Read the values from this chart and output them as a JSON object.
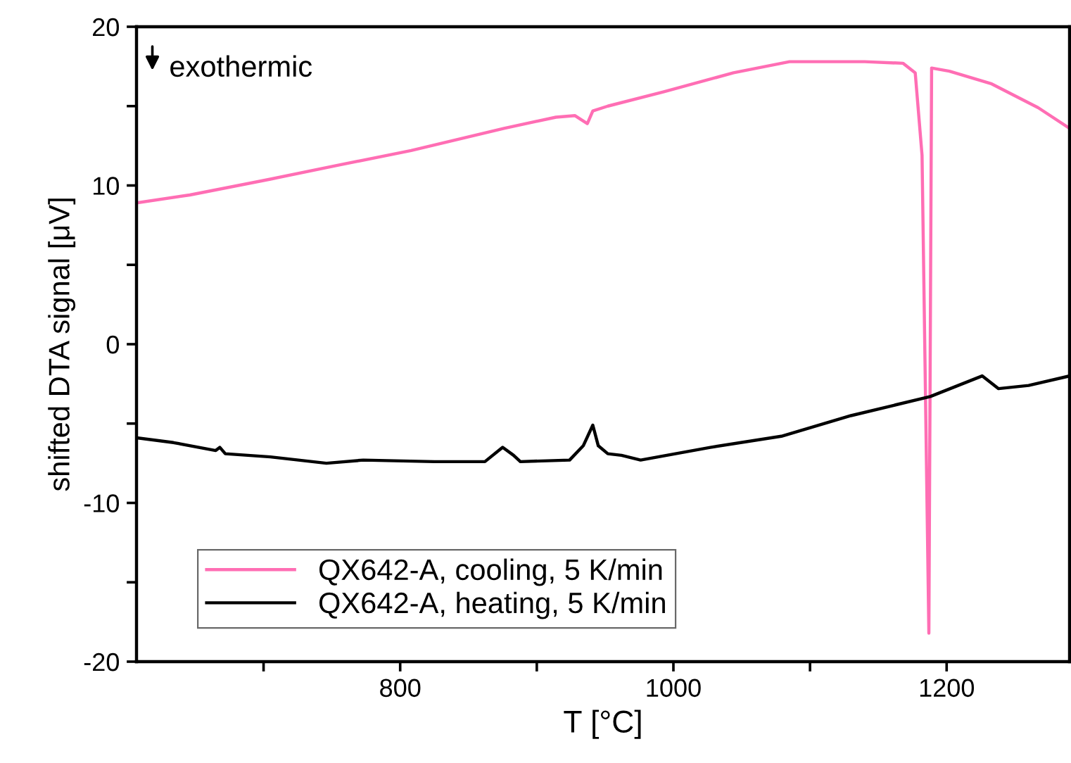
{
  "chart_data": {
    "type": "line",
    "xlabel": "T [°C]",
    "ylabel": "shifted DTA signal [μV]",
    "annotations": [
      "exothermic"
    ],
    "xlim": [
      607,
      1290
    ],
    "xticks": [
      {
        "value": 700,
        "label": null
      },
      800,
      {
        "value": 900,
        "label": null
      },
      1000,
      {
        "value": 1100,
        "label": null
      },
      1200
    ],
    "ylim": [
      -20,
      20
    ],
    "yticks": [
      -20,
      {
        "value": -15,
        "label": null
      },
      -10,
      {
        "value": -5,
        "label": null
      },
      0,
      {
        "value": 5,
        "label": null
      },
      10,
      {
        "value": 15,
        "label": null
      },
      20
    ],
    "grid": false,
    "legend": "bottom left",
    "marker": "none",
    "line_style": "solid",
    "series": [
      {
        "name": "QX642-A, cooling, 5 K/min",
        "color": "#ff6eb4",
        "x": [
          607,
          646,
          705,
          756,
          808,
          876,
          914,
          928,
          937,
          941,
          952,
          993,
          1044,
          1085,
          1140,
          1168,
          1177,
          1182,
          1187,
          1189,
          1202,
          1233,
          1267,
          1290
        ],
        "values": [
          8.9,
          9.4,
          10.4,
          11.3,
          12.2,
          13.6,
          14.3,
          14.4,
          13.9,
          14.7,
          15.0,
          15.9,
          17.1,
          17.8,
          17.8,
          17.7,
          17.1,
          11.9,
          -18.2,
          17.4,
          17.2,
          16.4,
          14.9,
          13.6
        ]
      },
      {
        "name": "QX642-A, heating, 5 K/min",
        "color": "#000000",
        "x": [
          607,
          634,
          665,
          668,
          672,
          705,
          746,
          773,
          825,
          862,
          875,
          883,
          888,
          924,
          934,
          941,
          945,
          952,
          962,
          976,
          1027,
          1079,
          1130,
          1188,
          1226,
          1238,
          1260,
          1290
        ],
        "values": [
          -5.9,
          -6.2,
          -6.7,
          -6.5,
          -6.9,
          -7.1,
          -7.5,
          -7.3,
          -7.4,
          -7.4,
          -6.5,
          -7.0,
          -7.4,
          -7.3,
          -6.4,
          -5.1,
          -6.4,
          -6.9,
          -7.0,
          -7.3,
          -6.5,
          -5.8,
          -4.5,
          -3.3,
          -2.0,
          -2.8,
          -2.6,
          -2.0
        ]
      }
    ]
  }
}
